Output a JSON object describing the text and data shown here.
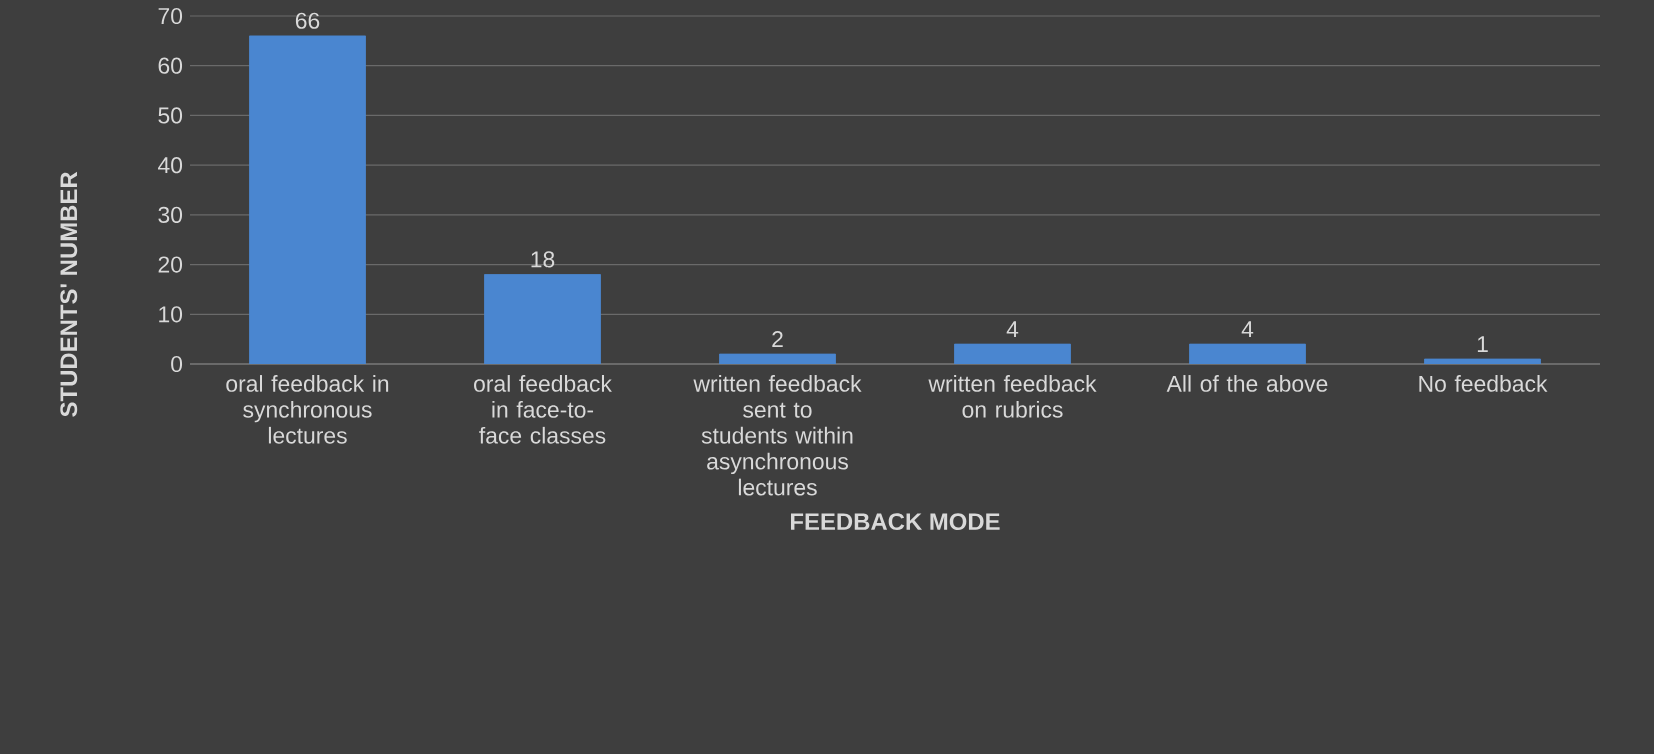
{
  "chart_data": {
    "type": "bar",
    "categories": [
      "oral feedback in synchronous lectures",
      "oral feedback in face-to-face classes",
      "written feedback sent to students within asynchronous lectures",
      "written feedback on rubrics",
      "All of the above",
      "No feedback"
    ],
    "values": [
      66,
      18,
      2,
      4,
      4,
      1
    ],
    "color": "#4a86d0",
    "xlabel": "FEEDBACK MODE",
    "ylabel": "STUDENTS' NUMBER",
    "ylim": [
      0,
      70
    ],
    "yticks": [
      0,
      10,
      20,
      30,
      40,
      50,
      60,
      70
    ],
    "grid": "y",
    "data_labels": true
  }
}
